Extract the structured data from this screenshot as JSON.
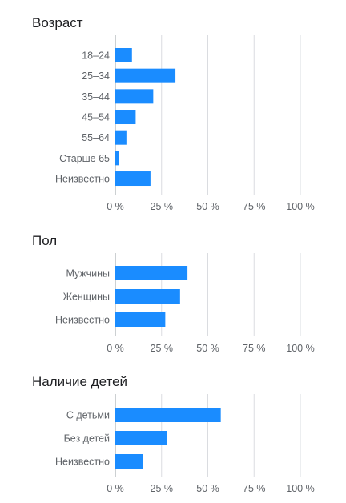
{
  "colors": {
    "bar": "#1a8cff",
    "grid": "#dadce0",
    "axis": "#9aa0a6"
  },
  "chart_data": [
    {
      "type": "bar",
      "orientation": "horizontal",
      "title": "Возраст",
      "categories": [
        "18–24",
        "25–34",
        "35–44",
        "45–54",
        "55–64",
        "Старше 65",
        "Неизвестно"
      ],
      "values": [
        9,
        32.5,
        20.5,
        11,
        6,
        2,
        19
      ],
      "xlim": [
        0,
        100
      ],
      "ticks": [
        "0 %",
        "25 %",
        "50 %",
        "75 %",
        "100 %"
      ],
      "grid": true
    },
    {
      "type": "bar",
      "orientation": "horizontal",
      "title": "Пол",
      "categories": [
        "Мужчины",
        "Женщины",
        "Неизвестно"
      ],
      "values": [
        39,
        35,
        27
      ],
      "xlim": [
        0,
        100
      ],
      "ticks": [
        "0 %",
        "25 %",
        "50 %",
        "75 %",
        "100 %"
      ],
      "grid": true
    },
    {
      "type": "bar",
      "orientation": "horizontal",
      "title": "Наличие детей",
      "categories": [
        "С детьми",
        "Без детей",
        "Неизвестно"
      ],
      "values": [
        57,
        28,
        15
      ],
      "xlim": [
        0,
        100
      ],
      "ticks": [
        "0 %",
        "25 %",
        "50 %",
        "75 %",
        "100 %"
      ],
      "grid": true
    }
  ]
}
